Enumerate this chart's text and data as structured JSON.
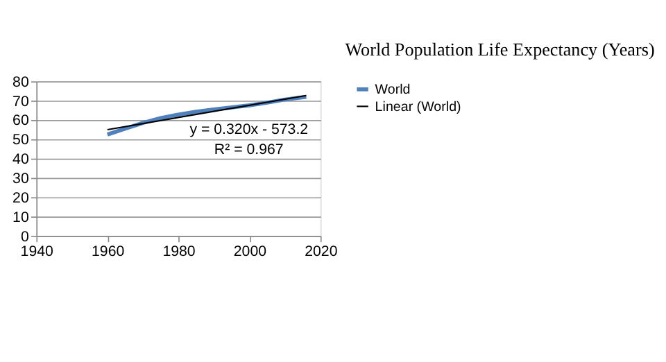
{
  "chart_data": {
    "type": "line",
    "title": "World Population Life Expectancy (Years)",
    "xlim": [
      1940,
      2020
    ],
    "xticks": [
      1940,
      1960,
      1980,
      2000,
      2020
    ],
    "ylim": [
      0,
      80
    ],
    "yticks": [
      0,
      10,
      20,
      30,
      40,
      50,
      60,
      70,
      80
    ],
    "grid": "y",
    "legend": "right",
    "marker": "none",
    "line_style": "solid",
    "annotations": [
      "y = 0.320x - 573.2",
      "R² = 0.967"
    ],
    "series": [
      {
        "name": "World",
        "color": "#4f81bd",
        "x": [
          1960,
          1965,
          1970,
          1975,
          1980,
          1985,
          1990,
          1995,
          2000,
          2005,
          2010,
          2016
        ],
        "values": [
          52.5,
          55.5,
          58.5,
          61,
          62.8,
          64.3,
          65.5,
          66.5,
          67.6,
          69,
          70.6,
          72
        ]
      },
      {
        "name": "Linear (World)",
        "color": "#000000",
        "type": "line",
        "x": [
          1960,
          2016
        ],
        "values": [
          55,
          72.7
        ]
      }
    ]
  }
}
